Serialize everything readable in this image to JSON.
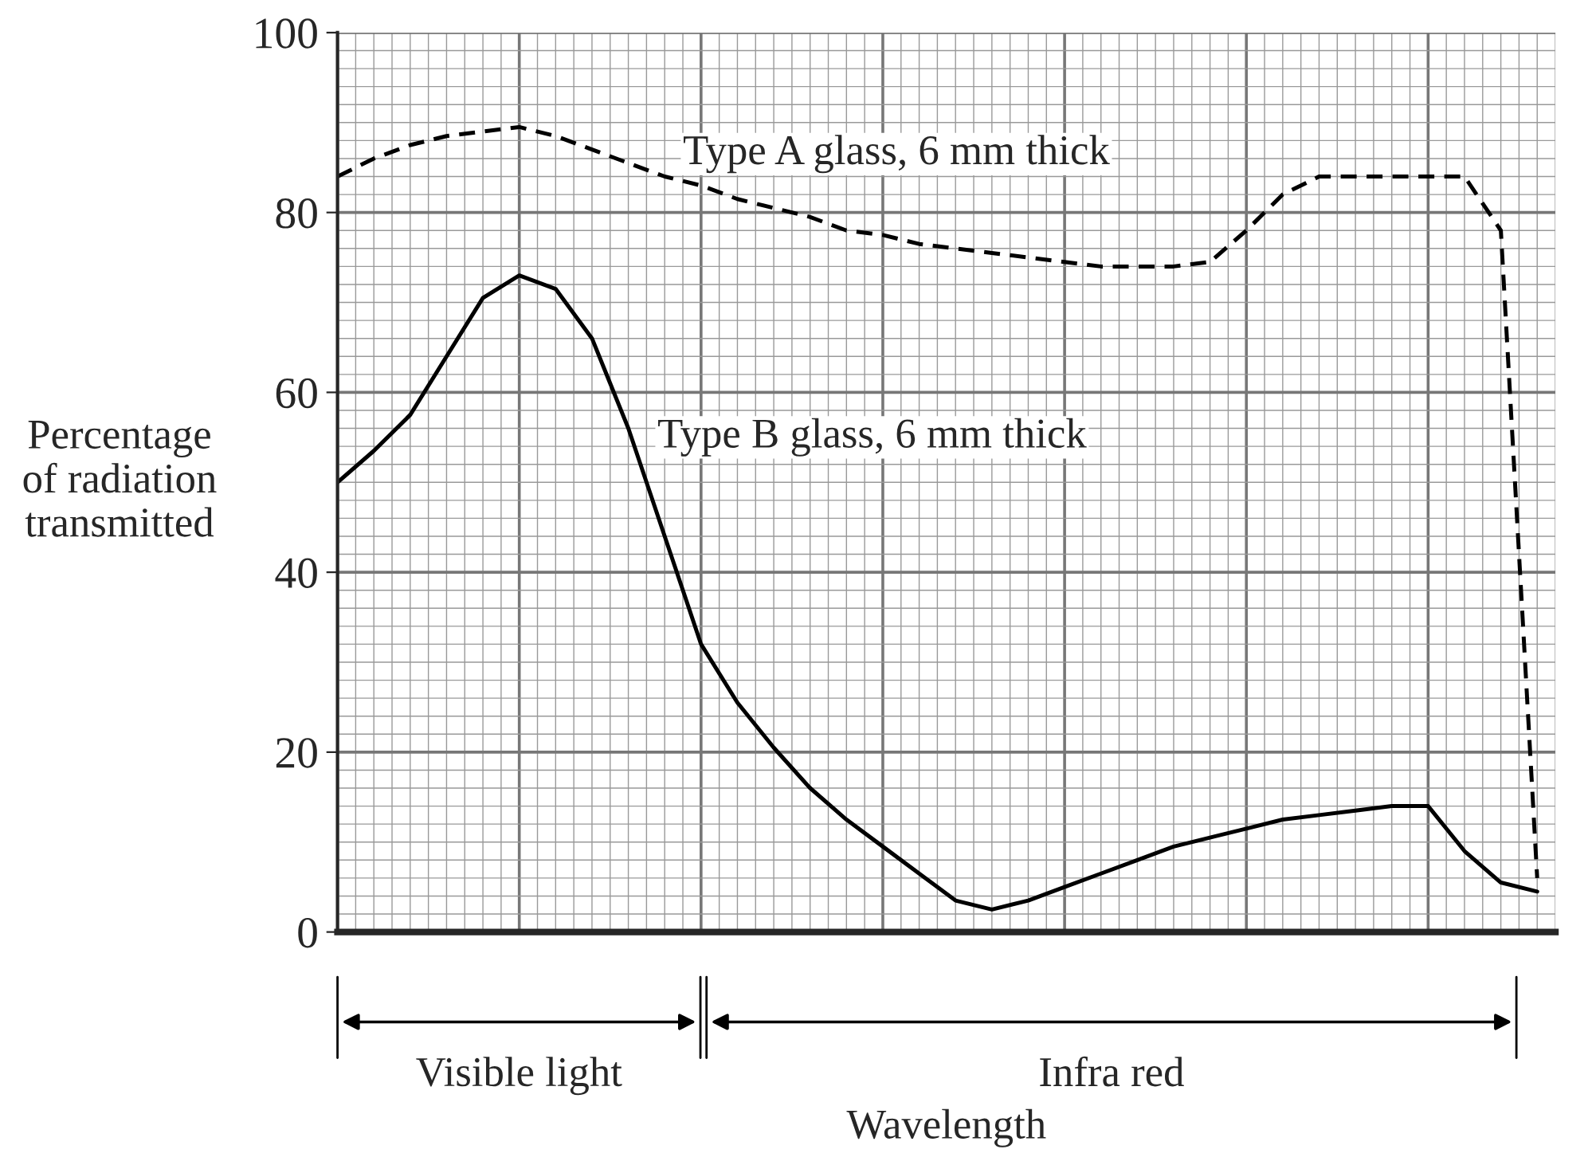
{
  "chart_data": {
    "type": "line",
    "xlabel": "Wavelength",
    "ylabel": "Percentage\nof radiation\ntransmitted",
    "categories": [
      null,
      null,
      null,
      null,
      null,
      null,
      null,
      null,
      null,
      null,
      null,
      null,
      null,
      null,
      null,
      null,
      null,
      null,
      null,
      null,
      null,
      null,
      null,
      null,
      null,
      null,
      null,
      null,
      null,
      null,
      null,
      null,
      null,
      null
    ],
    "series": [
      {
        "name": "Type A glass, 6 mm thick",
        "color": "#000000",
        "line_style": "dashed",
        "values": [
          84,
          86,
          87.5,
          88.5,
          89,
          89.5,
          88.5,
          87,
          85.5,
          84,
          83,
          81.5,
          80.5,
          79.5,
          78,
          77.5,
          76.5,
          76,
          75.5,
          75,
          74.5,
          74,
          74,
          74,
          74.5,
          78,
          82,
          84,
          84,
          84,
          84,
          84,
          78,
          6
        ]
      },
      {
        "name": "Type B glass, 6 mm thick",
        "color": "#000000",
        "line_style": "solid",
        "values": [
          50,
          53.5,
          57.5,
          64,
          70.5,
          73,
          71.5,
          66,
          56,
          44,
          32,
          25.5,
          20.5,
          16,
          12.5,
          9.5,
          6.5,
          3.5,
          2.5,
          3.5,
          5,
          6.5,
          8,
          9.5,
          10.5,
          11.5,
          12.5,
          13,
          13.5,
          14,
          14,
          9,
          5.5,
          4.5
        ]
      }
    ],
    "ylim": [
      0,
      100
    ],
    "yticks": [
      0,
      20,
      40,
      60,
      80,
      100
    ],
    "grid": true,
    "tick_labels": "y",
    "legend": false,
    "marker": "none",
    "annotations": [
      "Visible light",
      "Infra red"
    ]
  }
}
